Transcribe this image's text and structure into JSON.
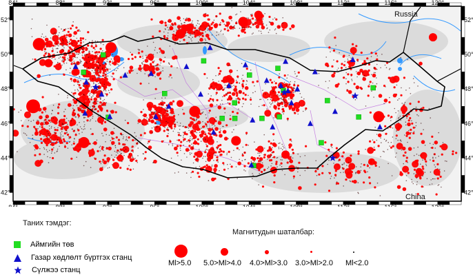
{
  "map": {
    "lon_ticks": [
      "84°",
      "88°",
      "92°",
      "96°",
      "100°",
      "104°",
      "108°",
      "112°",
      "116°",
      "120°"
    ],
    "lat_ticks": [
      "52°",
      "50°",
      "48°",
      "46°",
      "44°",
      "42°"
    ],
    "lon_range": [
      84,
      122
    ],
    "lat_range": [
      41.5,
      52.8
    ],
    "label_russia": "Russia",
    "label_china": "China",
    "colors": {
      "quake": "#ff0000",
      "station": "#1010cc",
      "center": "#22dd22",
      "border": "#000000",
      "river": "#3399ff"
    }
  },
  "legend": {
    "title": "Таних тэмдэг:",
    "aimag_center": "Аймгийн төв",
    "seismic_station": "Газар хөдлөлт бүртгэх станц",
    "infrasound_station": "Сүлжээ станц"
  },
  "magnitude_scale": {
    "title": "Магнитудын шаталбар:",
    "classes": [
      "Ml>5.0",
      "5.0>Ml>4.0",
      "4.0>Ml>3.0",
      "3.0>Ml>2.0",
      "Ml<2.0"
    ]
  },
  "aimag_centers": [
    [
      91.64,
      49.98
    ],
    [
      89.97,
      48.97
    ],
    [
      92.07,
      46.36
    ],
    [
      96.85,
      47.74
    ],
    [
      100.16,
      49.63
    ],
    [
      102.78,
      47.2
    ],
    [
      101.72,
      46.3
    ],
    [
      104.04,
      48.81
    ],
    [
      106.92,
      47.92
    ],
    [
      110.65,
      47.33
    ],
    [
      114.53,
      48.07
    ],
    [
      113.3,
      46.38
    ],
    [
      110.13,
      44.89
    ],
    [
      105.1,
      46.3
    ],
    [
      106.57,
      46.39
    ],
    [
      104.4,
      43.57
    ],
    [
      106.45,
      49.2
    ],
    [
      102.8,
      46.3
    ]
  ],
  "seismic_stations": [
    [
      89.3,
      49.3
    ],
    [
      91.5,
      47.7
    ],
    [
      90.2,
      48.4
    ],
    [
      93.5,
      48.8
    ],
    [
      95.7,
      48.9
    ],
    [
      97.2,
      47.0
    ],
    [
      99.9,
      47.7
    ],
    [
      101.0,
      45.5
    ],
    [
      102.3,
      48.2
    ],
    [
      103.7,
      49.4
    ],
    [
      105.5,
      48.5
    ],
    [
      106.7,
      48.2
    ],
    [
      107.3,
      47.9
    ],
    [
      108.1,
      48.0
    ],
    [
      107.6,
      47.2
    ],
    [
      104.3,
      46.2
    ],
    [
      106.0,
      45.8
    ],
    [
      109.2,
      46.0
    ],
    [
      111.3,
      46.7
    ],
    [
      115.1,
      45.8
    ],
    [
      112.8,
      49.7
    ],
    [
      109.6,
      49.0
    ],
    [
      104.2,
      43.6
    ],
    [
      96.1,
      46.4
    ],
    [
      90.1,
      46.6
    ],
    [
      92.2,
      46.4
    ],
    [
      100.7,
      50.4
    ],
    [
      98.7,
      49.3
    ],
    [
      107.1,
      49.6
    ]
  ],
  "infrasound_stations": [
    [
      91.0,
      48.1
    ],
    [
      107.0,
      47.8
    ],
    [
      113.0,
      47.6
    ],
    [
      111.1,
      44.0
    ]
  ]
}
